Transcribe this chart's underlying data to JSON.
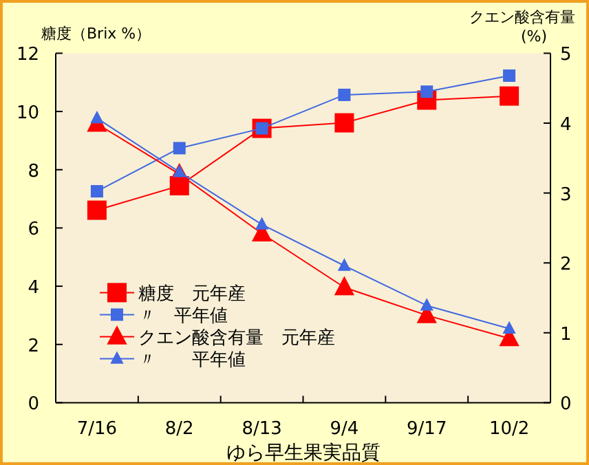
{
  "chart_data": {
    "type": "line",
    "xlabel": "ゆら早生果実品質",
    "ylabel": "糖度（Brix %）",
    "y2label": "クエン酸含有量 (%)",
    "categories": [
      "7/16",
      "8/2",
      "8/13",
      "9/4",
      "9/17",
      "10/2"
    ],
    "ylim": [
      0,
      12
    ],
    "yticks": [
      0,
      2,
      4,
      6,
      8,
      10,
      12
    ],
    "y2lim": [
      0,
      5
    ],
    "y2ticks": [
      0,
      1,
      2,
      3,
      4,
      5
    ],
    "grid": false,
    "legend": "bottom left",
    "series": [
      {
        "name": "糖度　元年産",
        "color": "#ff0000",
        "marker": "square",
        "values": [
          6.61,
          7.45,
          9.42,
          9.61,
          10.39,
          10.53
        ]
      },
      {
        "name": "〃　平年値",
        "color": "#4169e1",
        "marker": "square",
        "values": [
          7.26,
          8.74,
          9.42,
          10.57,
          10.68,
          11.23
        ]
      },
      {
        "name": "クエン酸含有量　元年産",
        "color": "#ff0000",
        "marker": "triangle",
        "axis": "y2",
        "values": [
          3.99,
          3.27,
          2.42,
          1.65,
          1.25,
          0.92
        ]
      },
      {
        "name": "〃　　平年値",
        "color": "#4169e1",
        "marker": "triangle",
        "axis": "y2",
        "values": [
          4.07,
          3.3,
          2.55,
          1.96,
          1.39,
          1.06
        ]
      }
    ]
  }
}
